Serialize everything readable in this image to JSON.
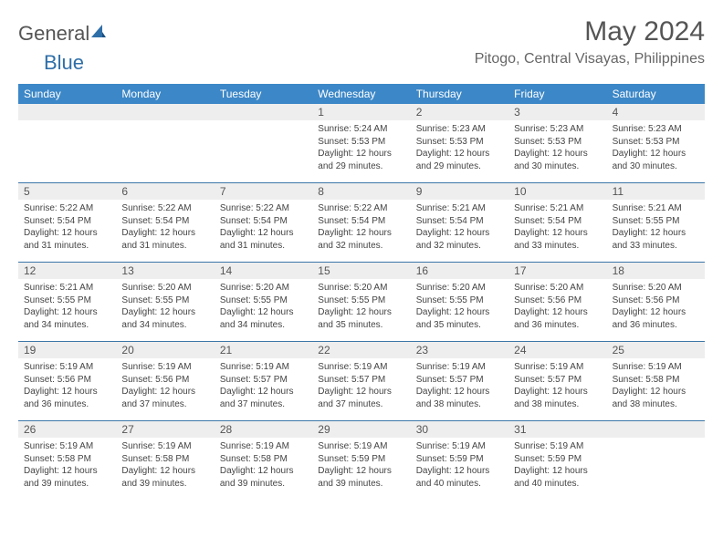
{
  "brand": {
    "general": "General",
    "blue": "Blue"
  },
  "title": "May 2024",
  "location": "Pitogo, Central Visayas, Philippines",
  "colors": {
    "header_bg": "#3c87c7",
    "border": "#3c77a8",
    "daynum_bg": "#eeeeee",
    "text": "#444444",
    "title_text": "#555555"
  },
  "day_labels": [
    "Sunday",
    "Monday",
    "Tuesday",
    "Wednesday",
    "Thursday",
    "Friday",
    "Saturday"
  ],
  "weeks": [
    [
      {
        "n": "",
        "sr": "",
        "ss": "",
        "d1": "",
        "d2": ""
      },
      {
        "n": "",
        "sr": "",
        "ss": "",
        "d1": "",
        "d2": ""
      },
      {
        "n": "",
        "sr": "",
        "ss": "",
        "d1": "",
        "d2": ""
      },
      {
        "n": "1",
        "sr": "Sunrise: 5:24 AM",
        "ss": "Sunset: 5:53 PM",
        "d1": "Daylight: 12 hours",
        "d2": "and 29 minutes."
      },
      {
        "n": "2",
        "sr": "Sunrise: 5:23 AM",
        "ss": "Sunset: 5:53 PM",
        "d1": "Daylight: 12 hours",
        "d2": "and 29 minutes."
      },
      {
        "n": "3",
        "sr": "Sunrise: 5:23 AM",
        "ss": "Sunset: 5:53 PM",
        "d1": "Daylight: 12 hours",
        "d2": "and 30 minutes."
      },
      {
        "n": "4",
        "sr": "Sunrise: 5:23 AM",
        "ss": "Sunset: 5:53 PM",
        "d1": "Daylight: 12 hours",
        "d2": "and 30 minutes."
      }
    ],
    [
      {
        "n": "5",
        "sr": "Sunrise: 5:22 AM",
        "ss": "Sunset: 5:54 PM",
        "d1": "Daylight: 12 hours",
        "d2": "and 31 minutes."
      },
      {
        "n": "6",
        "sr": "Sunrise: 5:22 AM",
        "ss": "Sunset: 5:54 PM",
        "d1": "Daylight: 12 hours",
        "d2": "and 31 minutes."
      },
      {
        "n": "7",
        "sr": "Sunrise: 5:22 AM",
        "ss": "Sunset: 5:54 PM",
        "d1": "Daylight: 12 hours",
        "d2": "and 31 minutes."
      },
      {
        "n": "8",
        "sr": "Sunrise: 5:22 AM",
        "ss": "Sunset: 5:54 PM",
        "d1": "Daylight: 12 hours",
        "d2": "and 32 minutes."
      },
      {
        "n": "9",
        "sr": "Sunrise: 5:21 AM",
        "ss": "Sunset: 5:54 PM",
        "d1": "Daylight: 12 hours",
        "d2": "and 32 minutes."
      },
      {
        "n": "10",
        "sr": "Sunrise: 5:21 AM",
        "ss": "Sunset: 5:54 PM",
        "d1": "Daylight: 12 hours",
        "d2": "and 33 minutes."
      },
      {
        "n": "11",
        "sr": "Sunrise: 5:21 AM",
        "ss": "Sunset: 5:55 PM",
        "d1": "Daylight: 12 hours",
        "d2": "and 33 minutes."
      }
    ],
    [
      {
        "n": "12",
        "sr": "Sunrise: 5:21 AM",
        "ss": "Sunset: 5:55 PM",
        "d1": "Daylight: 12 hours",
        "d2": "and 34 minutes."
      },
      {
        "n": "13",
        "sr": "Sunrise: 5:20 AM",
        "ss": "Sunset: 5:55 PM",
        "d1": "Daylight: 12 hours",
        "d2": "and 34 minutes."
      },
      {
        "n": "14",
        "sr": "Sunrise: 5:20 AM",
        "ss": "Sunset: 5:55 PM",
        "d1": "Daylight: 12 hours",
        "d2": "and 34 minutes."
      },
      {
        "n": "15",
        "sr": "Sunrise: 5:20 AM",
        "ss": "Sunset: 5:55 PM",
        "d1": "Daylight: 12 hours",
        "d2": "and 35 minutes."
      },
      {
        "n": "16",
        "sr": "Sunrise: 5:20 AM",
        "ss": "Sunset: 5:55 PM",
        "d1": "Daylight: 12 hours",
        "d2": "and 35 minutes."
      },
      {
        "n": "17",
        "sr": "Sunrise: 5:20 AM",
        "ss": "Sunset: 5:56 PM",
        "d1": "Daylight: 12 hours",
        "d2": "and 36 minutes."
      },
      {
        "n": "18",
        "sr": "Sunrise: 5:20 AM",
        "ss": "Sunset: 5:56 PM",
        "d1": "Daylight: 12 hours",
        "d2": "and 36 minutes."
      }
    ],
    [
      {
        "n": "19",
        "sr": "Sunrise: 5:19 AM",
        "ss": "Sunset: 5:56 PM",
        "d1": "Daylight: 12 hours",
        "d2": "and 36 minutes."
      },
      {
        "n": "20",
        "sr": "Sunrise: 5:19 AM",
        "ss": "Sunset: 5:56 PM",
        "d1": "Daylight: 12 hours",
        "d2": "and 37 minutes."
      },
      {
        "n": "21",
        "sr": "Sunrise: 5:19 AM",
        "ss": "Sunset: 5:57 PM",
        "d1": "Daylight: 12 hours",
        "d2": "and 37 minutes."
      },
      {
        "n": "22",
        "sr": "Sunrise: 5:19 AM",
        "ss": "Sunset: 5:57 PM",
        "d1": "Daylight: 12 hours",
        "d2": "and 37 minutes."
      },
      {
        "n": "23",
        "sr": "Sunrise: 5:19 AM",
        "ss": "Sunset: 5:57 PM",
        "d1": "Daylight: 12 hours",
        "d2": "and 38 minutes."
      },
      {
        "n": "24",
        "sr": "Sunrise: 5:19 AM",
        "ss": "Sunset: 5:57 PM",
        "d1": "Daylight: 12 hours",
        "d2": "and 38 minutes."
      },
      {
        "n": "25",
        "sr": "Sunrise: 5:19 AM",
        "ss": "Sunset: 5:58 PM",
        "d1": "Daylight: 12 hours",
        "d2": "and 38 minutes."
      }
    ],
    [
      {
        "n": "26",
        "sr": "Sunrise: 5:19 AM",
        "ss": "Sunset: 5:58 PM",
        "d1": "Daylight: 12 hours",
        "d2": "and 39 minutes."
      },
      {
        "n": "27",
        "sr": "Sunrise: 5:19 AM",
        "ss": "Sunset: 5:58 PM",
        "d1": "Daylight: 12 hours",
        "d2": "and 39 minutes."
      },
      {
        "n": "28",
        "sr": "Sunrise: 5:19 AM",
        "ss": "Sunset: 5:58 PM",
        "d1": "Daylight: 12 hours",
        "d2": "and 39 minutes."
      },
      {
        "n": "29",
        "sr": "Sunrise: 5:19 AM",
        "ss": "Sunset: 5:59 PM",
        "d1": "Daylight: 12 hours",
        "d2": "and 39 minutes."
      },
      {
        "n": "30",
        "sr": "Sunrise: 5:19 AM",
        "ss": "Sunset: 5:59 PM",
        "d1": "Daylight: 12 hours",
        "d2": "and 40 minutes."
      },
      {
        "n": "31",
        "sr": "Sunrise: 5:19 AM",
        "ss": "Sunset: 5:59 PM",
        "d1": "Daylight: 12 hours",
        "d2": "and 40 minutes."
      },
      {
        "n": "",
        "sr": "",
        "ss": "",
        "d1": "",
        "d2": ""
      }
    ]
  ]
}
